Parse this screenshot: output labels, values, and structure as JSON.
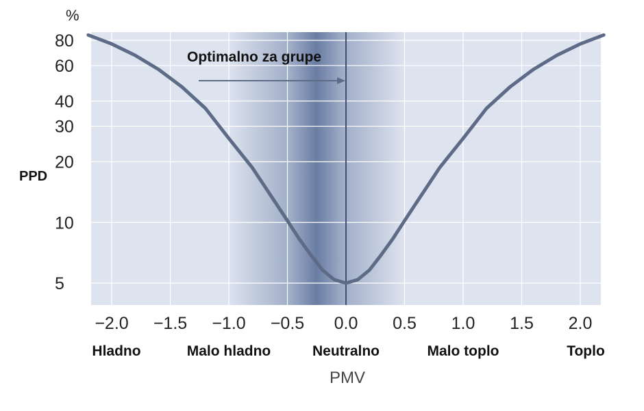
{
  "chart_data": {
    "type": "line",
    "title": "",
    "xlabel": "PMV",
    "ylabel": "PPD",
    "y_unit": "%",
    "y_scale": "log",
    "xlim": [
      -2.2,
      2.2
    ],
    "ylim": [
      4,
      100
    ],
    "grid": true,
    "x_ticks": [
      -2.0,
      -1.5,
      -1.0,
      -0.5,
      0.0,
      0.5,
      1.0,
      1.5,
      2.0
    ],
    "x_tick_labels": [
      "−2.0",
      "−1.5",
      "−1.0",
      "−0.5",
      "0.0",
      "0.5",
      "1.0",
      "1.5",
      "2.0"
    ],
    "y_ticks": [
      5,
      10,
      20,
      30,
      40,
      60,
      80
    ],
    "y_tick_labels": [
      "5",
      "10",
      "20",
      "30",
      "40",
      "60",
      "80"
    ],
    "zones": [
      {
        "label": "Hladno",
        "x": -2.0
      },
      {
        "label": "Malo hladno",
        "x": -1.0
      },
      {
        "label": "Neutralno",
        "x": 0.0
      },
      {
        "label": "Malo toplo",
        "x": 1.0
      },
      {
        "label": "Toplo",
        "x": 2.0
      }
    ],
    "optimal_band": [
      -0.5,
      0.5
    ],
    "annotation": {
      "text": "Optimalno za grupe",
      "target_x": 0.0
    },
    "series": [
      {
        "x": [
          -2.2,
          -2.0,
          -1.8,
          -1.6,
          -1.4,
          -1.2,
          -1.0,
          -0.8,
          -0.6,
          -0.5,
          -0.4,
          -0.3,
          -0.2,
          -0.1,
          0.0,
          0.1,
          0.2,
          0.3,
          0.4,
          0.5,
          0.6,
          0.8,
          1.0,
          1.2,
          1.4,
          1.6,
          1.8,
          2.0,
          2.2
        ],
        "y": [
          85.0,
          76.8,
          67.4,
          57.4,
          47.0,
          36.8,
          26.1,
          18.7,
          12.5,
          10.2,
          8.3,
          6.9,
          5.8,
          5.2,
          5.0,
          5.2,
          5.8,
          6.9,
          8.3,
          10.2,
          12.5,
          18.7,
          26.1,
          36.8,
          47.0,
          57.4,
          67.4,
          76.8,
          85.0
        ]
      }
    ],
    "colors": {
      "background": "#dde3ef",
      "curve": "#5d6b86",
      "band": "#556b96",
      "grid": "#ffffff"
    }
  }
}
